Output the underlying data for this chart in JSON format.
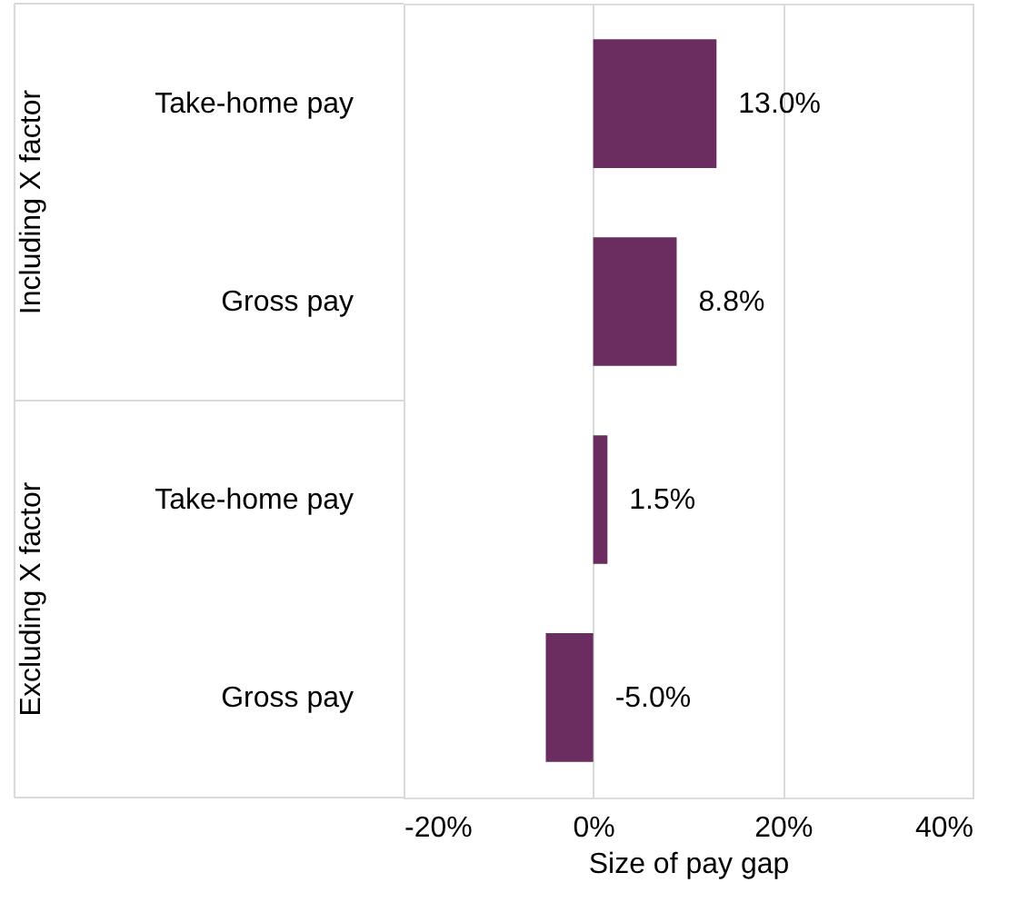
{
  "chart_data": {
    "type": "bar",
    "orientation": "horizontal",
    "categories": [
      "Take-home pay",
      "Gross pay",
      "Take-home pay",
      "Gross pay"
    ],
    "values": [
      13.0,
      8.8,
      1.5,
      -5.0
    ],
    "value_labels": [
      "13.0%",
      "8.8%",
      "1.5%",
      "-5.0%"
    ],
    "color": "#6b2c5f",
    "xlabel": "Size of pay gap",
    "xlim": [
      -20,
      40
    ],
    "xticks": [
      {
        "value": -20,
        "label": "-20%"
      },
      {
        "value": 0,
        "label": "0%"
      },
      {
        "value": 20,
        "label": "20%"
      },
      {
        "value": 40,
        "label": "40%"
      }
    ],
    "grid": "x",
    "annotations": [
      "Including X factor",
      "Excluding X factor"
    ]
  }
}
